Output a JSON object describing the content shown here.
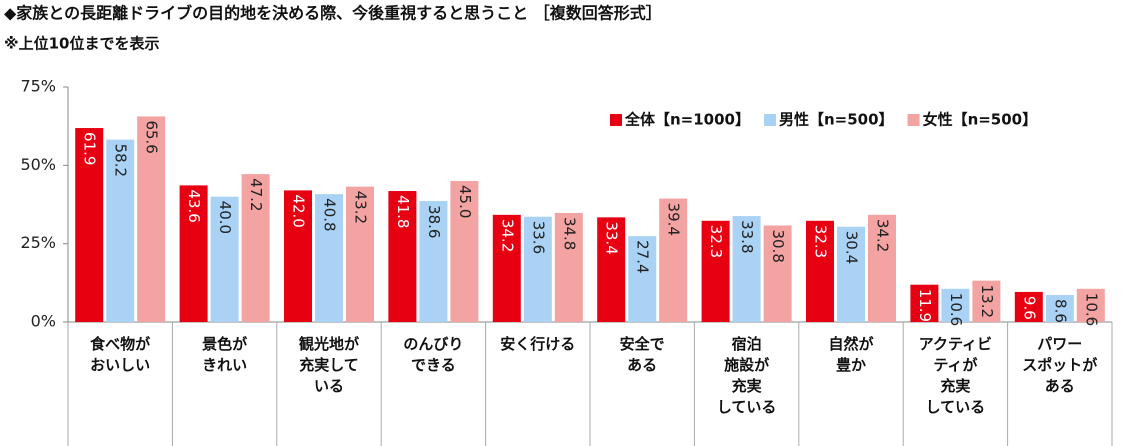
{
  "chart_data": {
    "type": "bar",
    "title": "◆家族との長距離ドライブの目的地を決める際、今後重視すると思うこと ［複数回答形式］",
    "subtitle": "※上位10位までを表示",
    "categories": [
      "食べ物が\nおいしい",
      "景色が\nきれい",
      "観光地が\n充実して\nいる",
      "のんびり\nできる",
      "安く行ける",
      "安全で\nある",
      "宿泊\n施設が\n充実\nしている",
      "自然が\n豊か",
      "アクティビ\nティが\n充実\nしている",
      "パワー\nスポットが\nある"
    ],
    "series": [
      {
        "name": "全体【n=1000】",
        "color": "#e60012",
        "values": [
          61.9,
          43.6,
          42.0,
          41.8,
          34.2,
          33.4,
          32.3,
          32.3,
          11.9,
          9.6
        ],
        "value_labels": [
          "61.9",
          "43.6",
          "42.0",
          "41.8",
          "34.2",
          "33.4",
          "32.3",
          "32.3",
          "11.9",
          "9.6"
        ]
      },
      {
        "name": "男性【n=500】",
        "color": "#a9d2f5",
        "values": [
          58.2,
          40.0,
          40.8,
          38.6,
          33.6,
          27.4,
          33.8,
          30.4,
          10.6,
          8.6
        ],
        "value_labels": [
          "58.2",
          "40.0",
          "40.8",
          "38.6",
          "33.6",
          "27.4",
          "33.8",
          "30.4",
          "10.6",
          "8.6"
        ]
      },
      {
        "name": "女性【n=500】",
        "color": "#f4a3a3",
        "values": [
          65.6,
          47.2,
          43.2,
          45.0,
          34.8,
          39.4,
          30.8,
          34.2,
          13.2,
          10.6
        ],
        "value_labels": [
          "65.6",
          "47.2",
          "43.2",
          "45.0",
          "34.8",
          "39.4",
          "30.8",
          "34.2",
          "13.2",
          "10.6"
        ]
      }
    ],
    "ylim": [
      0,
      75
    ],
    "yticks": [
      {
        "value": 0,
        "label": "0%"
      },
      {
        "value": 25,
        "label": "25%"
      },
      {
        "value": 50,
        "label": "50%"
      },
      {
        "value": 75,
        "label": "75%"
      }
    ],
    "legend": "top-right"
  }
}
